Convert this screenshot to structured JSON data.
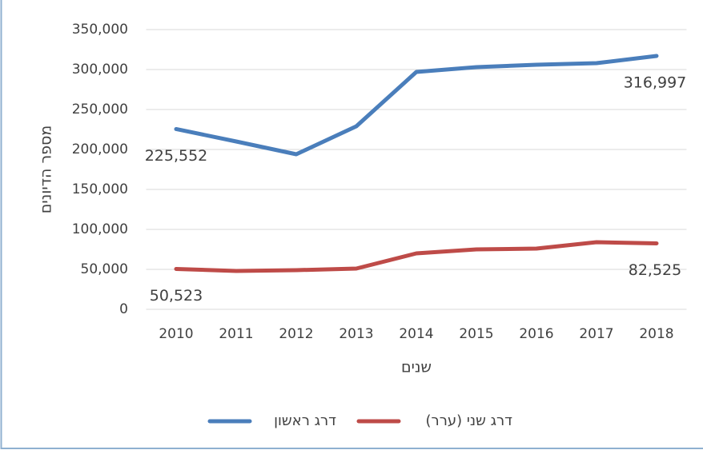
{
  "chart_data": {
    "type": "line",
    "categories": [
      "2010",
      "2011",
      "2012",
      "2013",
      "2014",
      "2015",
      "2016",
      "2017",
      "2018"
    ],
    "series": [
      {
        "name": "דרג ראשון",
        "color": "#4a7ebb",
        "values": [
          225552,
          210000,
          194000,
          229000,
          297000,
          303000,
          306000,
          308000,
          316997
        ],
        "value_labels": [
          "225,552",
          null,
          null,
          null,
          null,
          null,
          null,
          null,
          "316,997"
        ]
      },
      {
        "name": "דרג שני (ערר)",
        "color": "#be4b48",
        "values": [
          50523,
          48000,
          49000,
          51000,
          70000,
          75000,
          76000,
          84000,
          82525
        ],
        "value_labels": [
          "50,523",
          null,
          null,
          null,
          null,
          null,
          null,
          null,
          "82,525"
        ]
      }
    ],
    "ylim": [
      0,
      350000
    ],
    "yticks": [
      0,
      {
        "value": 50000,
        "label": "50,000"
      },
      {
        "value": 100000,
        "label": "100,000"
      },
      {
        "value": 150000,
        "label": "150,000"
      },
      {
        "value": 200000,
        "label": "200,000"
      },
      {
        "value": 250000,
        "label": "250,000"
      },
      {
        "value": 300000,
        "label": "300,000"
      },
      {
        "value": 350000,
        "label": "350,000"
      }
    ],
    "ylabel": "מספר הדיונים",
    "xlabel": "שנים",
    "grid": true,
    "legend": "bottom"
  }
}
